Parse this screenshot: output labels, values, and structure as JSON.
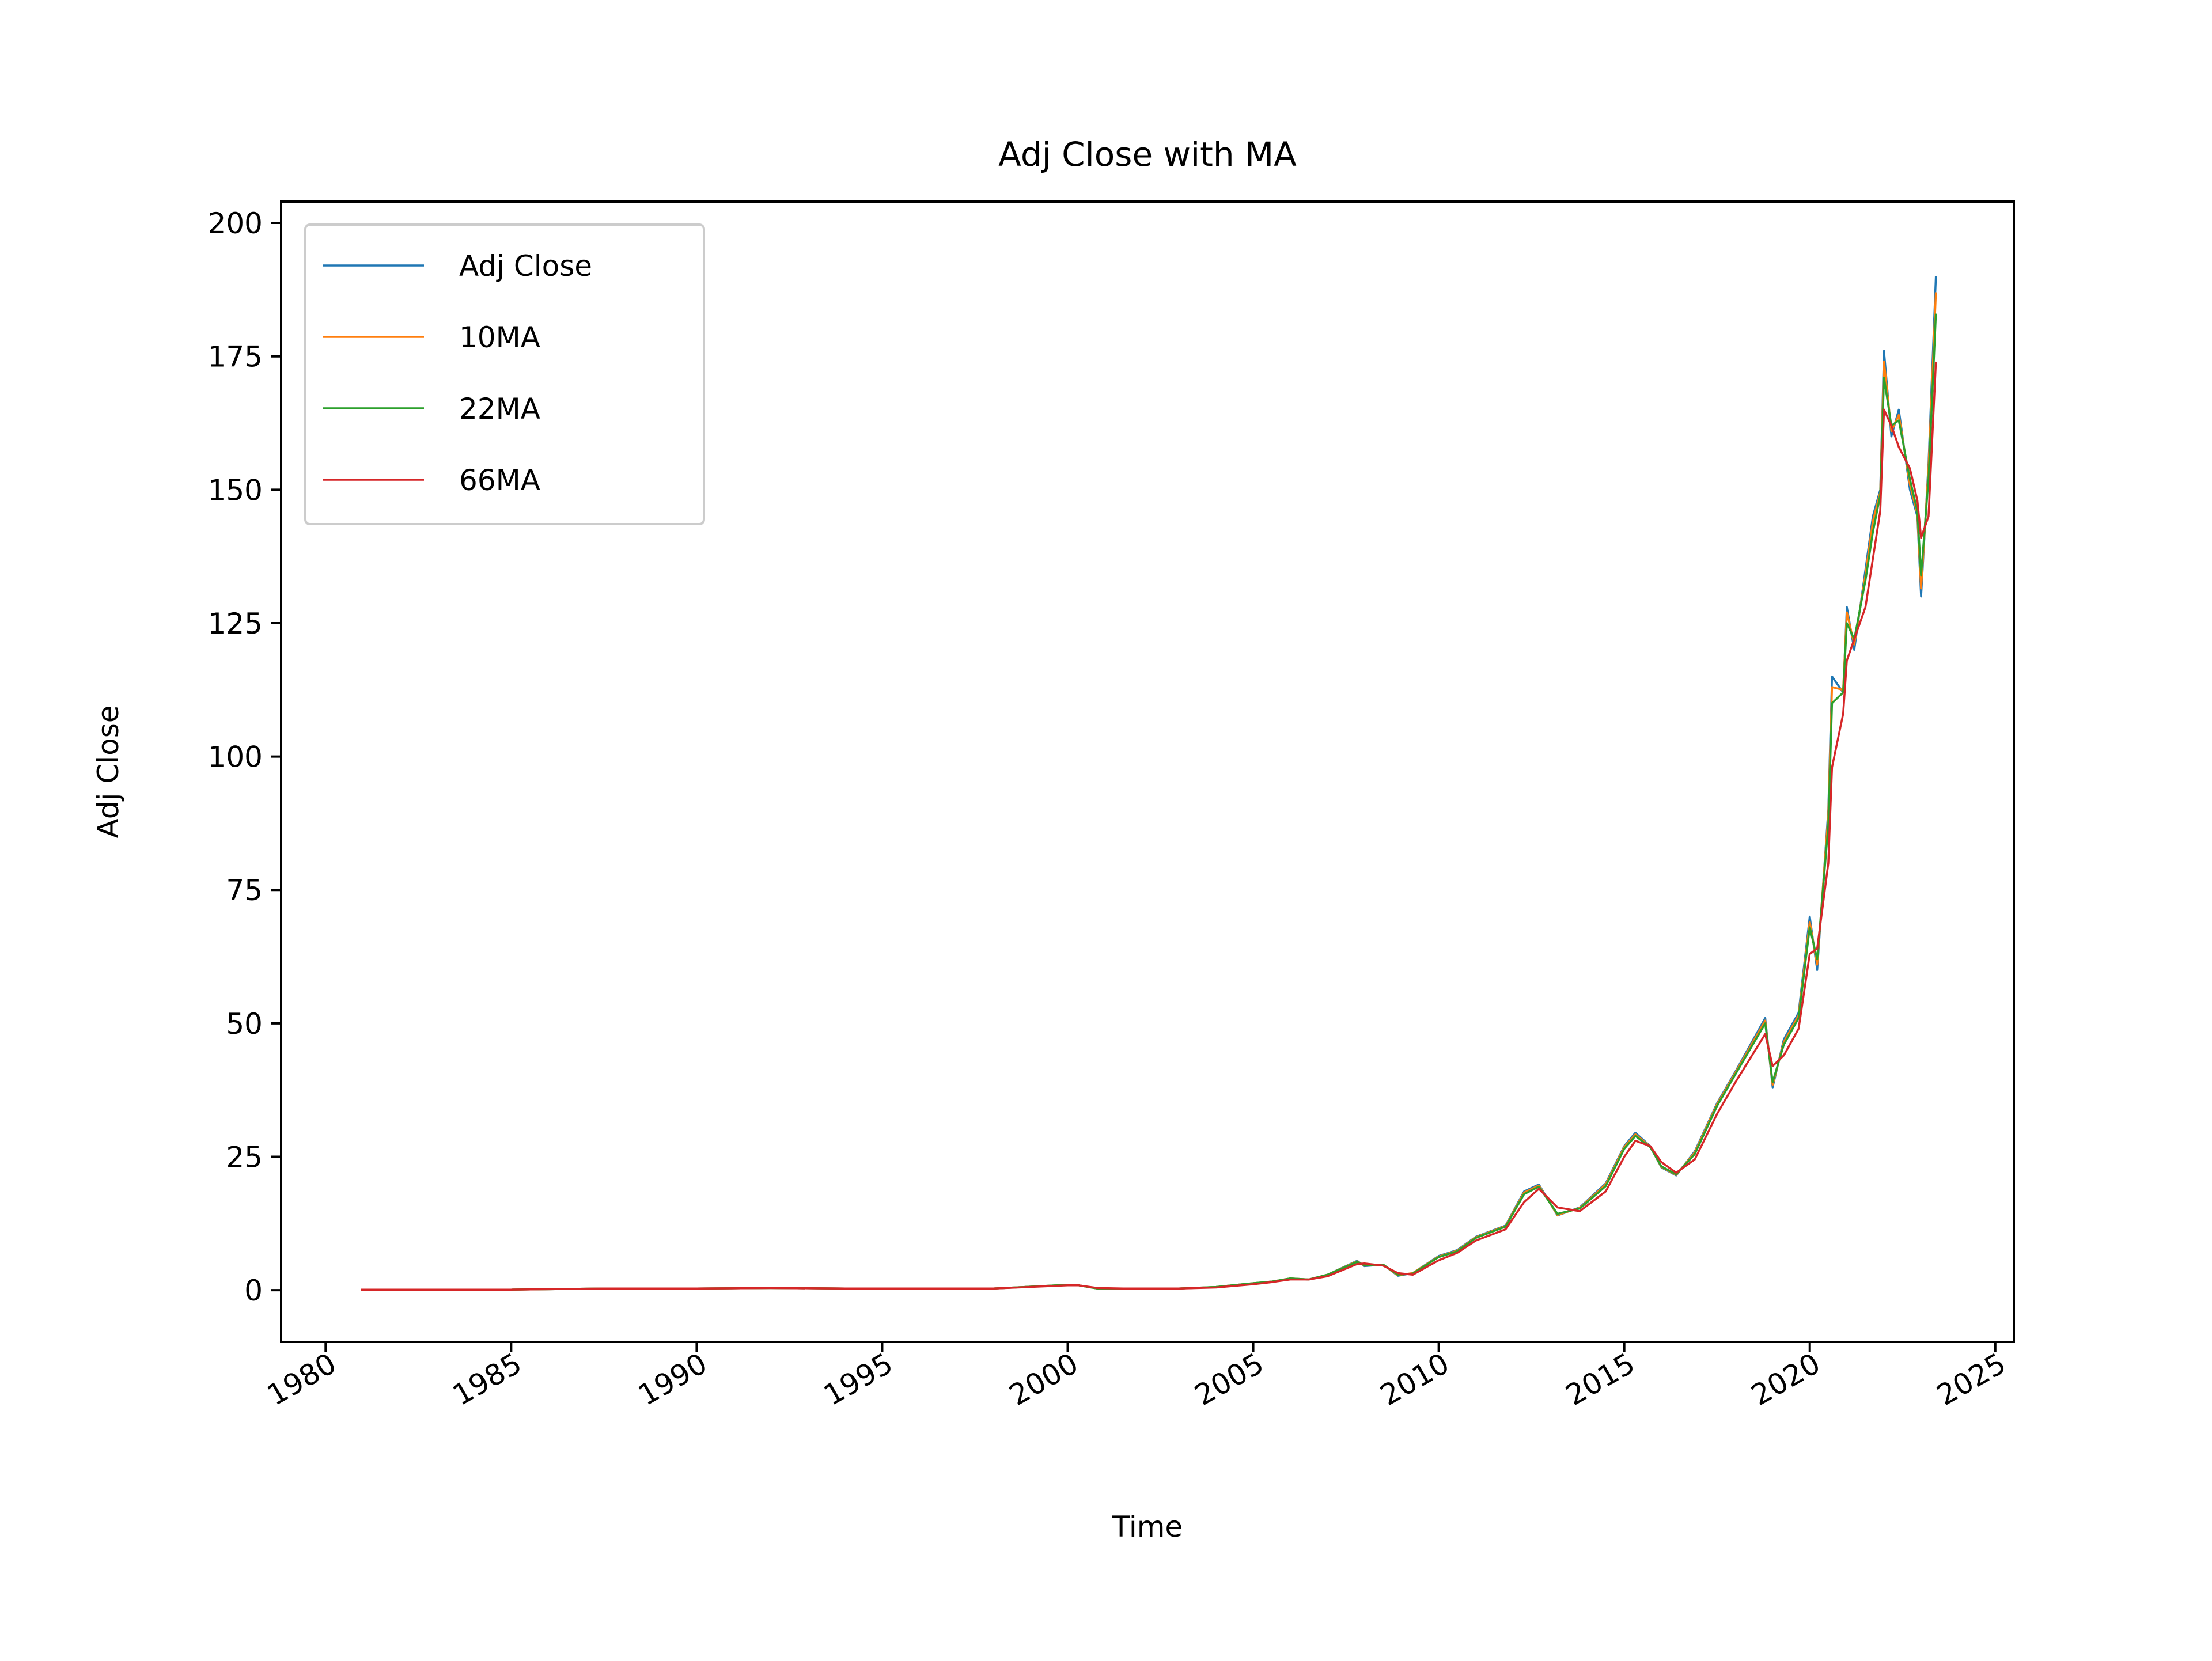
{
  "chart_data": {
    "type": "line",
    "title": "Adj Close with MA",
    "xlabel": "Time",
    "ylabel": "Adj Close",
    "xlim": [
      1978.8,
      2025.5
    ],
    "ylim": [
      -9.7,
      204
    ],
    "x_ticks": [
      "1980",
      "1985",
      "1990",
      "1995",
      "2000",
      "2005",
      "2010",
      "2015",
      "2020",
      "2025"
    ],
    "y_ticks": [
      "0",
      "25",
      "50",
      "75",
      "100",
      "125",
      "150",
      "175",
      "200"
    ],
    "grid": false,
    "legend_position": "top-left",
    "series": [
      {
        "name": "Adj Close",
        "color": "#1f77b4",
        "x": [
          1980.95,
          1983.0,
          1985.0,
          1987.5,
          1990.0,
          1992.0,
          1994.0,
          1996.0,
          1998.0,
          2000.0,
          2000.3,
          2000.8,
          2001.5,
          2003.0,
          2004.0,
          2005.0,
          2005.5,
          2006.0,
          2006.5,
          2007.0,
          2007.8,
          2008.0,
          2008.5,
          2008.9,
          2009.3,
          2010.0,
          2010.5,
          2011.0,
          2011.8,
          2012.3,
          2012.7,
          2013.2,
          2013.8,
          2014.5,
          2015.0,
          2015.3,
          2015.7,
          2016.0,
          2016.4,
          2016.9,
          2017.5,
          2018.0,
          2018.8,
          2019.0,
          2019.3,
          2019.7,
          2020.0,
          2020.2,
          2020.5,
          2020.6,
          2020.9,
          2021.0,
          2021.2,
          2021.5,
          2021.7,
          2021.9,
          2022.0,
          2022.2,
          2022.4,
          2022.7,
          2022.9,
          2023.0,
          2023.2,
          2023.4
        ],
        "y": [
          0.1,
          0.1,
          0.1,
          0.3,
          0.3,
          0.4,
          0.3,
          0.3,
          0.3,
          1.0,
          0.9,
          0.3,
          0.3,
          0.3,
          0.6,
          1.3,
          1.6,
          2.2,
          2.0,
          2.9,
          5.5,
          4.5,
          4.8,
          2.7,
          3.2,
          6.4,
          7.5,
          10.0,
          12.1,
          18.5,
          19.8,
          14.0,
          15.5,
          20.0,
          27.0,
          29.5,
          27.0,
          23.0,
          21.5,
          26.0,
          35.0,
          41.0,
          51.0,
          38.0,
          47.0,
          52.0,
          70.0,
          60.0,
          90.0,
          115.0,
          112.0,
          128.0,
          120.0,
          135.0,
          145.0,
          150.0,
          176.0,
          160.0,
          165.0,
          150.0,
          145.0,
          130.0,
          155.0,
          190.0
        ]
      },
      {
        "name": "10MA",
        "color": "#ff7f0e",
        "x": [
          1980.95,
          1983.0,
          1985.0,
          1987.5,
          1990.0,
          1992.0,
          1994.0,
          1996.0,
          1998.0,
          2000.0,
          2000.3,
          2000.8,
          2001.5,
          2003.0,
          2004.0,
          2005.0,
          2005.5,
          2006.0,
          2006.5,
          2007.0,
          2007.8,
          2008.0,
          2008.5,
          2008.9,
          2009.3,
          2010.0,
          2010.5,
          2011.0,
          2011.8,
          2012.3,
          2012.7,
          2013.2,
          2013.8,
          2014.5,
          2015.0,
          2015.3,
          2015.7,
          2016.0,
          2016.4,
          2016.9,
          2017.5,
          2018.0,
          2018.8,
          2019.0,
          2019.3,
          2019.7,
          2020.0,
          2020.2,
          2020.5,
          2020.6,
          2020.9,
          2021.0,
          2021.2,
          2021.5,
          2021.7,
          2021.9,
          2022.0,
          2022.2,
          2022.4,
          2022.7,
          2022.9,
          2023.0,
          2023.2,
          2023.4
        ],
        "y": [
          0.1,
          0.1,
          0.1,
          0.3,
          0.3,
          0.4,
          0.3,
          0.3,
          0.3,
          1.0,
          0.9,
          0.3,
          0.3,
          0.3,
          0.6,
          1.3,
          1.6,
          2.2,
          2.0,
          2.9,
          5.4,
          4.6,
          4.8,
          2.8,
          3.2,
          6.3,
          7.4,
          9.9,
          12.0,
          18.3,
          19.6,
          14.1,
          15.4,
          19.8,
          26.8,
          29.2,
          26.9,
          23.1,
          21.6,
          25.8,
          34.8,
          40.8,
          50.5,
          38.5,
          46.5,
          51.5,
          69.0,
          61.0,
          89.0,
          113.0,
          112.5,
          127.0,
          121.0,
          134.0,
          144.0,
          149.5,
          174.0,
          161.0,
          164.0,
          151.0,
          145.5,
          131.5,
          154.0,
          187.0
        ]
      },
      {
        "name": "22MA",
        "color": "#2ca02c",
        "x": [
          1980.95,
          1983.0,
          1985.0,
          1987.5,
          1990.0,
          1992.0,
          1994.0,
          1996.0,
          1998.0,
          2000.0,
          2000.3,
          2000.8,
          2001.5,
          2003.0,
          2004.0,
          2005.0,
          2005.5,
          2006.0,
          2006.5,
          2007.0,
          2007.8,
          2008.0,
          2008.5,
          2008.9,
          2009.3,
          2010.0,
          2010.5,
          2011.0,
          2011.8,
          2012.3,
          2012.7,
          2013.2,
          2013.8,
          2014.5,
          2015.0,
          2015.3,
          2015.7,
          2016.0,
          2016.4,
          2016.9,
          2017.5,
          2018.0,
          2018.8,
          2019.0,
          2019.3,
          2019.7,
          2020.0,
          2020.2,
          2020.5,
          2020.6,
          2020.9,
          2021.0,
          2021.2,
          2021.5,
          2021.7,
          2021.9,
          2022.0,
          2022.2,
          2022.4,
          2022.7,
          2022.9,
          2023.0,
          2023.2,
          2023.4
        ],
        "y": [
          0.1,
          0.1,
          0.1,
          0.3,
          0.3,
          0.4,
          0.3,
          0.3,
          0.3,
          1.0,
          0.9,
          0.3,
          0.3,
          0.3,
          0.6,
          1.3,
          1.6,
          2.2,
          2.0,
          2.9,
          5.3,
          4.7,
          4.8,
          2.9,
          3.1,
          6.2,
          7.3,
          9.8,
          11.9,
          18.0,
          19.4,
          14.3,
          15.3,
          19.5,
          26.5,
          28.9,
          26.8,
          23.2,
          21.7,
          25.5,
          34.5,
          40.5,
          50.0,
          39.0,
          46.0,
          51.0,
          68.0,
          62.0,
          87.0,
          110.0,
          112.0,
          125.0,
          122.0,
          133.0,
          142.0,
          149.0,
          171.0,
          162.0,
          163.0,
          152.0,
          146.0,
          134.0,
          152.0,
          183.0
        ]
      },
      {
        "name": "66MA",
        "color": "#d62728",
        "x": [
          1980.95,
          1983.0,
          1985.0,
          1987.5,
          1990.0,
          1992.0,
          1994.0,
          1996.0,
          1998.0,
          2000.0,
          2000.3,
          2000.8,
          2001.5,
          2003.0,
          2004.0,
          2005.0,
          2005.5,
          2006.0,
          2006.5,
          2007.0,
          2007.8,
          2008.0,
          2008.5,
          2008.9,
          2009.3,
          2010.0,
          2010.5,
          2011.0,
          2011.8,
          2012.3,
          2012.7,
          2013.2,
          2013.8,
          2014.5,
          2015.0,
          2015.3,
          2015.7,
          2016.0,
          2016.4,
          2016.9,
          2017.5,
          2018.0,
          2018.8,
          2019.0,
          2019.3,
          2019.7,
          2020.0,
          2020.2,
          2020.5,
          2020.6,
          2020.9,
          2021.0,
          2021.2,
          2021.5,
          2021.7,
          2021.9,
          2022.0,
          2022.2,
          2022.4,
          2022.7,
          2022.9,
          2023.0,
          2023.2,
          2023.4
        ],
        "y": [
          0.1,
          0.1,
          0.1,
          0.3,
          0.3,
          0.4,
          0.3,
          0.3,
          0.3,
          0.9,
          0.9,
          0.4,
          0.3,
          0.3,
          0.5,
          1.1,
          1.5,
          2.0,
          2.0,
          2.6,
          4.9,
          5.0,
          4.6,
          3.2,
          2.9,
          5.6,
          7.0,
          9.3,
          11.4,
          16.5,
          19.0,
          15.5,
          14.8,
          18.5,
          25.0,
          28.0,
          27.0,
          24.0,
          22.0,
          24.5,
          33.0,
          39.0,
          48.0,
          42.0,
          44.0,
          49.0,
          63.0,
          64.0,
          80.0,
          98.0,
          108.0,
          118.0,
          122.0,
          128.0,
          137.0,
          146.0,
          165.0,
          162.0,
          158.0,
          154.0,
          148.0,
          141.0,
          145.0,
          174.0
        ]
      }
    ]
  }
}
